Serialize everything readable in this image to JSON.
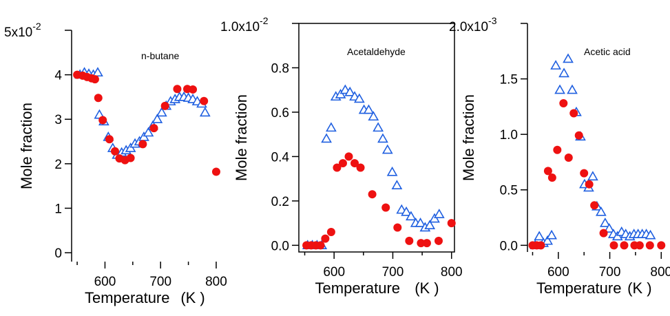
{
  "colors": {
    "series_a": "#1f5fe0",
    "series_b": "#ee1111"
  },
  "chart_data": [
    {
      "type": "scatter",
      "title": "n-butane",
      "xlabel": "Temperature",
      "xunit": "(K )",
      "ylabel": "Mole fraction",
      "xlim": [
        540,
        805
      ],
      "ylim": [
        -0.2,
        5
      ],
      "y_multiplier_label": "5x10",
      "y_multiplier_exp": "-2",
      "xticks": [
        600,
        700,
        800
      ],
      "yticks": [
        0,
        1,
        2,
        3,
        4
      ],
      "yticks_labels": [
        "0",
        "1",
        "2",
        "3",
        "4"
      ],
      "grid": false,
      "series": [
        {
          "marker": "open-triangle",
          "x": [
            555,
            563,
            571,
            579,
            587,
            590,
            598,
            606,
            614,
            622,
            630,
            638,
            646,
            654,
            662,
            670,
            678,
            686,
            694,
            702,
            710,
            718,
            726,
            734,
            742,
            750,
            758,
            766,
            774,
            780
          ],
          "y": [
            4.0,
            4.05,
            4.02,
            4.0,
            4.05,
            3.1,
            2.95,
            2.6,
            2.35,
            2.2,
            2.25,
            2.3,
            2.35,
            2.45,
            2.5,
            2.6,
            2.7,
            2.85,
            3.0,
            3.15,
            3.3,
            3.4,
            3.45,
            3.5,
            3.5,
            3.48,
            3.45,
            3.4,
            3.35,
            3.15
          ]
        },
        {
          "marker": "filled-circle",
          "x": [
            550,
            560,
            568,
            576,
            582,
            588,
            596,
            608,
            618,
            626,
            636,
            646,
            668,
            688,
            708,
            730,
            748,
            758,
            778,
            800
          ],
          "y": [
            4.0,
            3.98,
            3.95,
            3.92,
            3.9,
            3.48,
            2.98,
            2.55,
            2.28,
            2.12,
            2.08,
            2.13,
            2.44,
            2.8,
            3.3,
            3.68,
            3.68,
            3.67,
            3.41,
            1.82
          ]
        }
      ]
    },
    {
      "type": "scatter",
      "title": "Acetaldehyde",
      "xlabel": "Temperature",
      "xunit": "(K )",
      "ylabel": "Mole fraction",
      "xlim": [
        540,
        805
      ],
      "ylim": [
        -0.03,
        1.0
      ],
      "y_multiplier_label": "1.0x10",
      "y_multiplier_exp": "-2",
      "xticks": [
        600,
        700,
        800
      ],
      "yticks": [
        0,
        0.2,
        0.4,
        0.6,
        0.8
      ],
      "yticks_labels": [
        "0.0",
        "0.2",
        "0.4",
        "0.6",
        "0.8"
      ],
      "grid": false,
      "series": [
        {
          "marker": "open-triangle",
          "x": [
            555,
            563,
            571,
            579,
            587,
            595,
            603,
            611,
            619,
            627,
            635,
            643,
            651,
            659,
            667,
            675,
            683,
            691,
            699,
            707,
            715,
            723,
            731,
            739,
            747,
            755,
            763,
            771,
            779
          ],
          "y": [
            0.0,
            0.0,
            0.0,
            0.0,
            0.48,
            0.53,
            0.67,
            0.68,
            0.7,
            0.69,
            0.67,
            0.66,
            0.61,
            0.61,
            0.58,
            0.53,
            0.48,
            0.43,
            0.33,
            0.27,
            0.16,
            0.15,
            0.13,
            0.1,
            0.1,
            0.08,
            0.09,
            0.12,
            0.14
          ]
        },
        {
          "marker": "filled-circle",
          "x": [
            553,
            561,
            569,
            577,
            585,
            595,
            605,
            615,
            625,
            635,
            645,
            665,
            688,
            708,
            728,
            748,
            758,
            778,
            800
          ],
          "y": [
            0.0,
            0.0,
            0.0,
            0.0,
            0.03,
            0.06,
            0.35,
            0.37,
            0.4,
            0.37,
            0.35,
            0.23,
            0.17,
            0.08,
            0.02,
            0.01,
            0.01,
            0.02,
            0.1
          ]
        }
      ]
    },
    {
      "type": "scatter",
      "title": "Acetic acid",
      "xlabel": "Temperature",
      "xunit": "(K )",
      "ylabel": "Mole fraction",
      "xlim": [
        540,
        805
      ],
      "ylim": [
        -0.06,
        2.0
      ],
      "y_multiplier_label": "2.0x10",
      "y_multiplier_exp": "-3",
      "xticks": [
        600,
        700,
        800
      ],
      "yticks": [
        0,
        0.5,
        1.0,
        1.5
      ],
      "yticks_labels": [
        "0.0",
        "0.5",
        "1.0",
        "1.5"
      ],
      "grid": false,
      "series": [
        {
          "marker": "open-triangle",
          "x": [
            555,
            563,
            571,
            579,
            587,
            595,
            603,
            611,
            619,
            627,
            635,
            643,
            651,
            659,
            667,
            675,
            683,
            691,
            699,
            707,
            715,
            723,
            731,
            739,
            747,
            755,
            763,
            771,
            779
          ],
          "y": [
            0.0,
            0.08,
            0.02,
            0.04,
            0.09,
            1.62,
            1.4,
            1.55,
            1.68,
            1.4,
            1.2,
            0.98,
            0.55,
            0.52,
            0.62,
            0.35,
            0.3,
            0.2,
            0.15,
            0.1,
            0.08,
            0.12,
            0.1,
            0.08,
            0.1,
            0.1,
            0.1,
            0.1,
            0.09
          ]
        },
        {
          "marker": "filled-circle",
          "x": [
            550,
            558,
            566,
            580,
            588,
            598,
            610,
            620,
            630,
            640,
            650,
            660,
            670,
            688,
            708,
            728,
            748,
            758,
            778,
            800
          ],
          "y": [
            0.0,
            0.0,
            0.0,
            0.67,
            0.61,
            0.86,
            1.28,
            0.79,
            1.19,
            0.99,
            0.65,
            0.55,
            0.36,
            0.11,
            0.0,
            0.0,
            0.0,
            0.0,
            0.0,
            0.0
          ]
        }
      ]
    }
  ]
}
